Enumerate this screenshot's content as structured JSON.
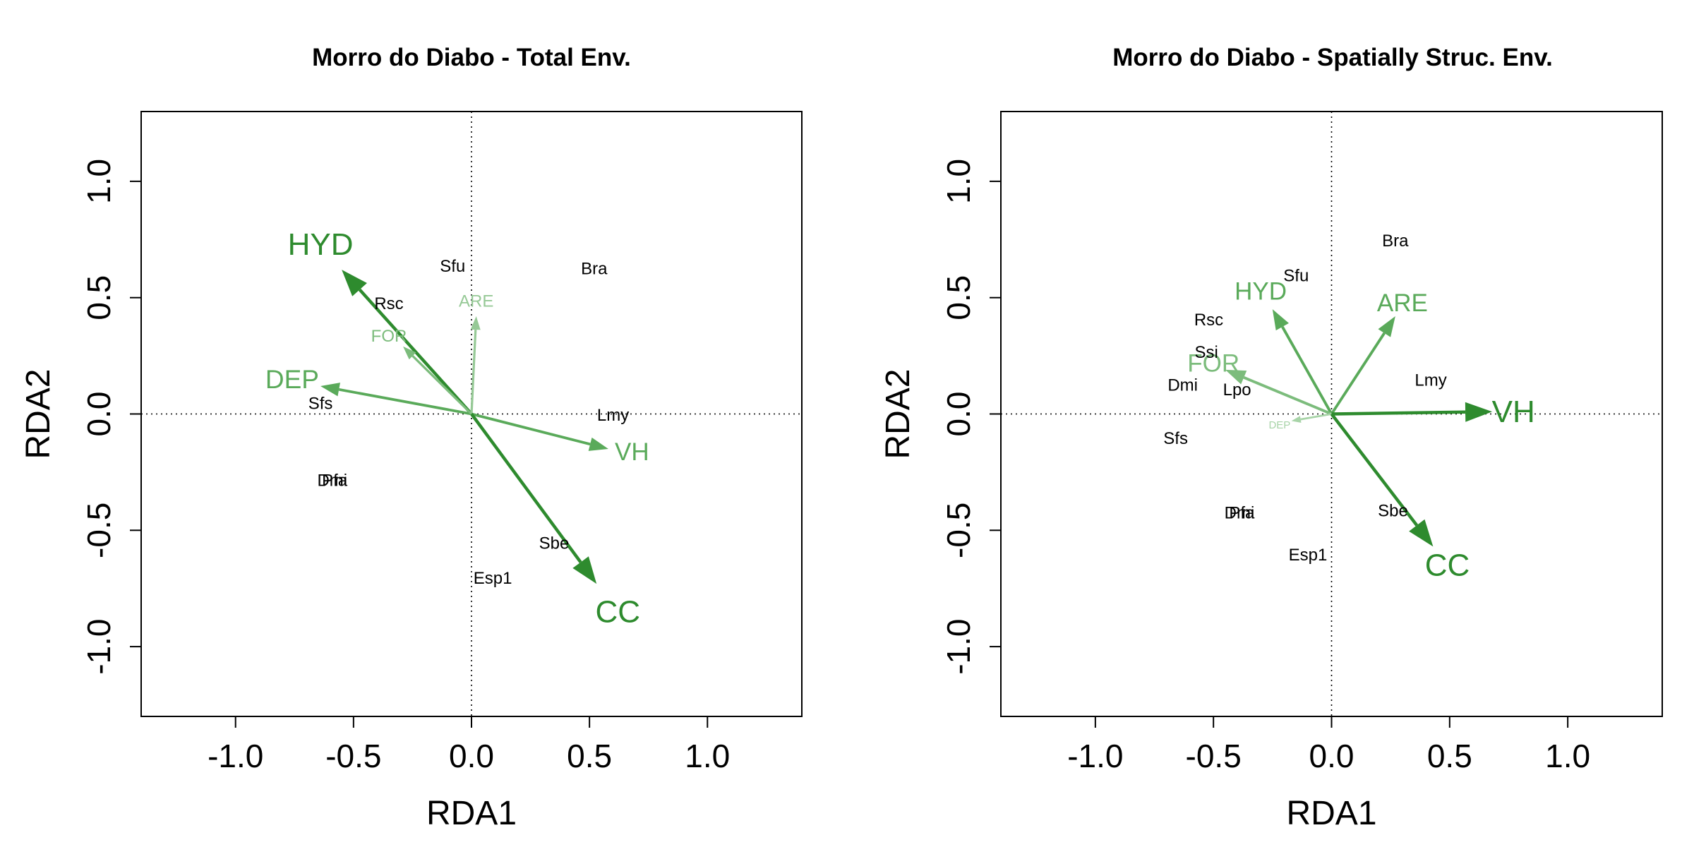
{
  "chart_data": [
    {
      "type": "scatter",
      "title": "Morro do Diabo - Total Env.",
      "xlabel": "RDA1",
      "ylabel": "RDA2",
      "xlim": [
        -1.4,
        1.4
      ],
      "ylim": [
        -1.3,
        1.3
      ],
      "xticks": [
        -1.0,
        -0.5,
        0.0,
        0.5,
        1.0
      ],
      "yticks": [
        -1.0,
        -0.5,
        0.0,
        0.5,
        1.0
      ],
      "xtick_labels": [
        "-1.0",
        "-0.5",
        "0.0",
        "0.5",
        "1.0"
      ],
      "ytick_labels": [
        "-1.0",
        "-0.5",
        "0.0",
        "0.5",
        "1.0"
      ],
      "grid": false,
      "species": [
        {
          "label": "Sfu",
          "x": -0.08,
          "y": 0.63
        },
        {
          "label": "Bra",
          "x": 0.52,
          "y": 0.62
        },
        {
          "label": "Rsc",
          "x": -0.35,
          "y": 0.47
        },
        {
          "label": "Sfs",
          "x": -0.64,
          "y": 0.04
        },
        {
          "label": "Lmy",
          "x": 0.6,
          "y": -0.01
        },
        {
          "label": "Pfa",
          "x": -0.58,
          "y": -0.29
        },
        {
          "label": "Dmi",
          "x": -0.59,
          "y": -0.29
        },
        {
          "label": "Sbe",
          "x": 0.35,
          "y": -0.56
        },
        {
          "label": "Esp1",
          "x": 0.09,
          "y": -0.71
        }
      ],
      "env_vectors": [
        {
          "label": "HYD",
          "x": -0.55,
          "y": 0.62,
          "color": "#2e8b2e",
          "head": 1.0,
          "label_pos": [
            -0.64,
            0.72
          ],
          "label_size": 1.0
        },
        {
          "label": "DEP",
          "x": -0.64,
          "y": 0.12,
          "color": "#5aaa5a",
          "head": 0.7,
          "label_pos": [
            -0.76,
            0.14
          ],
          "label_size": 0.85
        },
        {
          "label": "FOR",
          "x": -0.29,
          "y": 0.29,
          "color": "#7cbc7c",
          "head": 0.5,
          "label_pos": [
            -0.35,
            0.33
          ],
          "label_size": 0.55
        },
        {
          "label": "ARE",
          "x": 0.02,
          "y": 0.42,
          "color": "#96c996",
          "head": 0.5,
          "label_pos": [
            0.02,
            0.48
          ],
          "label_size": 0.55
        },
        {
          "label": "VH",
          "x": 0.58,
          "y": -0.15,
          "color": "#5aaa5a",
          "head": 0.7,
          "label_pos": [
            0.68,
            -0.17
          ],
          "label_size": 0.8
        },
        {
          "label": "CC",
          "x": 0.53,
          "y": -0.73,
          "color": "#2e8b2e",
          "head": 1.0,
          "label_pos": [
            0.62,
            -0.86
          ],
          "label_size": 1.0
        }
      ]
    },
    {
      "type": "scatter",
      "title": "Morro do Diabo - Spatially Struc. Env.",
      "xlabel": "RDA1",
      "ylabel": "RDA2",
      "xlim": [
        -1.4,
        1.4
      ],
      "ylim": [
        -1.3,
        1.3
      ],
      "xticks": [
        -1.0,
        -0.5,
        0.0,
        0.5,
        1.0
      ],
      "yticks": [
        -1.0,
        -0.5,
        0.0,
        0.5,
        1.0
      ],
      "xtick_labels": [
        "-1.0",
        "-0.5",
        "0.0",
        "0.5",
        "1.0"
      ],
      "ytick_labels": [
        "-1.0",
        "-0.5",
        "0.0",
        "0.5",
        "1.0"
      ],
      "grid": false,
      "species": [
        {
          "label": "Bra",
          "x": 0.27,
          "y": 0.74
        },
        {
          "label": "Sfu",
          "x": -0.15,
          "y": 0.59
        },
        {
          "label": "Rsc",
          "x": -0.52,
          "y": 0.4
        },
        {
          "label": "Ssi",
          "x": -0.53,
          "y": 0.26
        },
        {
          "label": "Lmy",
          "x": 0.42,
          "y": 0.14
        },
        {
          "label": "Dmi",
          "x": -0.63,
          "y": 0.12
        },
        {
          "label": "Lpo",
          "x": -0.4,
          "y": 0.1
        },
        {
          "label": "Sfs",
          "x": -0.66,
          "y": -0.11
        },
        {
          "label": "Sbe",
          "x": 0.26,
          "y": -0.42
        },
        {
          "label": "Pfa",
          "x": -0.38,
          "y": -0.43
        },
        {
          "label": "Dmi",
          "x": -0.39,
          "y": -0.43
        },
        {
          "label": "Esp1",
          "x": -0.1,
          "y": -0.61
        }
      ],
      "env_vectors": [
        {
          "label": "HYD",
          "x": -0.25,
          "y": 0.45,
          "color": "#5aaa5a",
          "head": 0.75,
          "label_pos": [
            -0.3,
            0.52
          ],
          "label_size": 0.8
        },
        {
          "label": "ARE",
          "x": 0.27,
          "y": 0.42,
          "color": "#5aaa5a",
          "head": 0.75,
          "label_pos": [
            0.3,
            0.47
          ],
          "label_size": 0.8
        },
        {
          "label": "FOR",
          "x": -0.45,
          "y": 0.19,
          "color": "#7cbc7c",
          "head": 0.75,
          "label_pos": [
            -0.5,
            0.21
          ],
          "label_size": 0.8
        },
        {
          "label": "DEP",
          "x": -0.17,
          "y": -0.03,
          "color": "#a8d4a8",
          "head": 0.35,
          "label_pos": [
            -0.22,
            -0.05
          ],
          "label_size": 0.35
        },
        {
          "label": "VH",
          "x": 0.68,
          "y": 0.01,
          "color": "#2e8b2e",
          "head": 1.0,
          "label_pos": [
            0.77,
            0.0
          ],
          "label_size": 1.0
        },
        {
          "label": "CC",
          "x": 0.43,
          "y": -0.57,
          "color": "#2e8b2e",
          "head": 1.0,
          "label_pos": [
            0.49,
            -0.66
          ],
          "label_size": 1.0
        }
      ]
    }
  ]
}
